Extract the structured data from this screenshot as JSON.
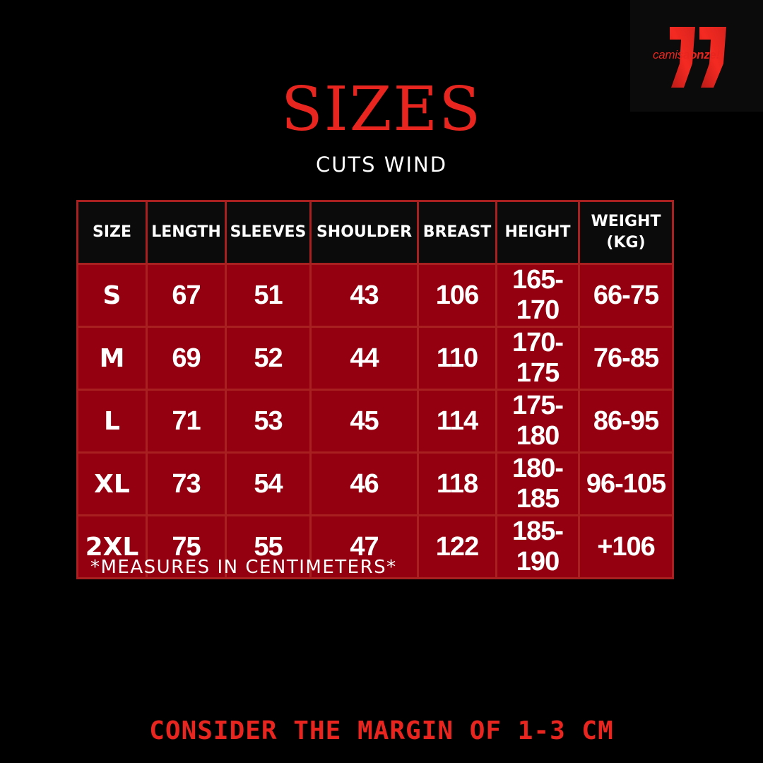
{
  "logo": {
    "text_light": "camisa",
    "text_bold": "onze!",
    "brand_color": "#e8261f"
  },
  "title": "SIZES",
  "subtitle": "CUTS WIND",
  "table": {
    "headers": [
      "SIZE",
      "LENGTH",
      "SLEEVES",
      "SHOULDER",
      "BREAST",
      "HEIGHT",
      "WEIGHT (KG)"
    ],
    "rows": [
      [
        "S",
        "67",
        "51",
        "43",
        "106",
        "165-170",
        "66-75"
      ],
      [
        "M",
        "69",
        "52",
        "44",
        "110",
        "170-175",
        "76-85"
      ],
      [
        "L",
        "71",
        "53",
        "45",
        "114",
        "175-180",
        "86-95"
      ],
      [
        "XL",
        "73",
        "54",
        "46",
        "118",
        "180-185",
        "96-105"
      ],
      [
        "2XL",
        "75",
        "55",
        "47",
        "122",
        "185-190",
        "+106"
      ]
    ],
    "header_bg": "#0b0b0b",
    "cell_bg": "#950010",
    "border_color": "#a82020"
  },
  "note": "*MEASURES IN CENTIMETERS*",
  "footer": "CONSIDER THE MARGIN OF 1-3 CM"
}
